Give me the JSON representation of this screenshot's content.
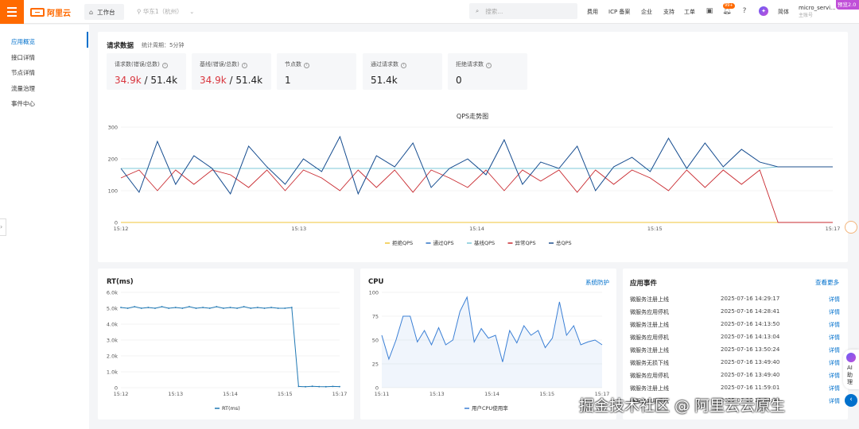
{
  "header": {
    "logo_text": "阿里云",
    "workbench": "工作台",
    "region": "华东1（杭州）",
    "search_placeholder": "搜索...",
    "nav": [
      "费用",
      "ICP 备案",
      "企业",
      "支持",
      "工单"
    ],
    "bell_badge": "99+",
    "language": "简体",
    "account_name": "micro_servi...",
    "account_type": "主账号",
    "preview_tag": "预览2.0"
  },
  "sidebar": {
    "items": [
      "应用概览",
      "接口详情",
      "节点详情",
      "流量治理",
      "事件中心"
    ],
    "active_index": 0
  },
  "request_panel": {
    "title": "请求数据",
    "period": "统计周期：5分钟",
    "stats": [
      {
        "label": "请求数(错误/总数)",
        "error": "34.9k",
        "total": "/ 51.4k"
      },
      {
        "label": "基线(错误/总数)",
        "error": "34.9k",
        "total": "/ 51.4k"
      },
      {
        "label": "节点数",
        "value": "1"
      },
      {
        "label": "通过请求数",
        "value": "51.4k"
      },
      {
        "label": "拒绝请求数",
        "value": "0"
      }
    ]
  },
  "qps_chart": {
    "title": "QPS走势图"
  },
  "rt_panel": {
    "title": "RT(ms)"
  },
  "cpu_panel": {
    "title": "CPU",
    "link": "系统防护"
  },
  "events_panel": {
    "title": "应用事件",
    "more": "查看更多",
    "detail_label": "详情",
    "rows": [
      {
        "name": "微服务注册上线",
        "time": "2025-07-16 14:29:17"
      },
      {
        "name": "微服务应用停机",
        "time": "2025-07-16 14:28:41"
      },
      {
        "name": "微服务注册上线",
        "time": "2025-07-16 14:13:50"
      },
      {
        "name": "微服务应用停机",
        "time": "2025-07-16 14:13:04"
      },
      {
        "name": "微服务注册上线",
        "time": "2025-07-16 13:50:24"
      },
      {
        "name": "微服务无损下线",
        "time": "2025-07-16 13:49:40"
      },
      {
        "name": "微服务应用停机",
        "time": "2025-07-16 13:49:40"
      },
      {
        "name": "微服务注册上线",
        "time": "2025-07-16 11:59:01"
      },
      {
        "name": "微服务应用停机",
        "time": "2025-07-16 11:04:32"
      }
    ]
  },
  "ai_helper": {
    "label": "AI助理"
  },
  "watermark": "掘金技术社区 @ 阿里云云原生",
  "chart_data": [
    {
      "type": "line",
      "title": "QPS走势图",
      "x_ticks": [
        "15:12",
        "15:13",
        "15:14",
        "15:15",
        "15:17"
      ],
      "ylim": [
        0,
        300
      ],
      "y_ticks": [
        0,
        100,
        200,
        300
      ],
      "legend_placement": "bottom",
      "grid": true,
      "series": [
        {
          "name": "拒绝QPS",
          "color": "#f0c53a",
          "values": [
            0,
            0,
            0,
            0,
            0,
            0,
            0,
            0,
            0,
            0,
            0,
            0,
            0,
            0,
            0,
            0,
            0,
            0,
            0,
            0,
            0,
            0,
            0,
            0,
            0,
            0,
            0,
            0,
            0,
            0,
            0,
            0,
            0,
            0,
            0,
            0,
            0,
            0,
            0,
            0
          ]
        },
        {
          "name": "通过QPS",
          "color": "#2f72c4",
          "values": [
            170,
            95,
            255,
            120,
            210,
            170,
            90,
            240,
            175,
            120,
            200,
            160,
            270,
            90,
            210,
            175,
            250,
            110,
            170,
            200,
            150,
            260,
            120,
            190,
            170,
            240,
            100,
            175,
            205,
            160,
            265,
            170,
            250,
            175,
            230,
            190,
            175,
            175,
            175,
            175
          ]
        },
        {
          "name": "基线QPS",
          "color": "#7ec8d8",
          "values": [
            170,
            170,
            170,
            170,
            170,
            170,
            170,
            170,
            170,
            170,
            170,
            170,
            170,
            170,
            170,
            170,
            170,
            170,
            170,
            170,
            170,
            170,
            170,
            170,
            170,
            170,
            170,
            170,
            170,
            170,
            170,
            170,
            170,
            170,
            170,
            170,
            175,
            175,
            175,
            175
          ]
        },
        {
          "name": "异常QPS",
          "color": "#c8282e",
          "values": [
            140,
            165,
            100,
            165,
            120,
            165,
            150,
            110,
            165,
            100,
            165,
            140,
            100,
            165,
            110,
            165,
            95,
            165,
            140,
            110,
            165,
            100,
            165,
            130,
            165,
            95,
            165,
            120,
            165,
            140,
            100,
            165,
            110,
            165,
            120,
            165,
            0,
            0,
            0,
            0
          ]
        },
        {
          "name": "总QPS",
          "color": "#1d4f8c",
          "values": [
            170,
            95,
            255,
            120,
            210,
            170,
            90,
            240,
            175,
            120,
            200,
            160,
            270,
            90,
            210,
            175,
            250,
            110,
            170,
            200,
            150,
            260,
            120,
            190,
            170,
            240,
            100,
            175,
            205,
            160,
            265,
            170,
            250,
            175,
            230,
            190,
            175,
            175,
            175,
            175
          ]
        }
      ]
    },
    {
      "type": "line",
      "title": "RT(ms)",
      "x_ticks": [
        "15:12",
        "15:13",
        "15:14",
        "15:15",
        "15:17"
      ],
      "ylim": [
        0,
        6000
      ],
      "y_ticks": [
        "0",
        "1.0k",
        "2.0k",
        "3.0k",
        "4.0k",
        "5.0k",
        "6.0k"
      ],
      "grid": true,
      "legend_placement": "bottom",
      "series": [
        {
          "name": "RT(ms)",
          "color": "#1f78b4",
          "values": [
            5050,
            5000,
            5100,
            5000,
            5050,
            5000,
            5100,
            5000,
            5050,
            5000,
            5100,
            5000,
            5050,
            5000,
            5100,
            5000,
            5050,
            5000,
            5100,
            5000,
            5050,
            5000,
            5050,
            5000,
            5000,
            5050,
            80,
            60,
            90,
            70,
            60,
            80,
            70
          ]
        }
      ]
    },
    {
      "type": "area",
      "title": "CPU",
      "x_ticks": [
        "15:11",
        "15:13",
        "15:14",
        "15:15",
        "15:17"
      ],
      "ylim": [
        0,
        100
      ],
      "y_ticks": [
        0,
        25,
        50,
        75,
        100
      ],
      "grid": true,
      "legend_placement": "bottom",
      "series": [
        {
          "name": "用户CPU使用率",
          "color": "#3a7fd5",
          "values": [
            55,
            30,
            50,
            75,
            75,
            48,
            60,
            45,
            63,
            45,
            50,
            80,
            95,
            48,
            62,
            52,
            55,
            27,
            60,
            47,
            65,
            55,
            60,
            42,
            52,
            90,
            55,
            65,
            45,
            48,
            50,
            45
          ]
        }
      ]
    }
  ]
}
